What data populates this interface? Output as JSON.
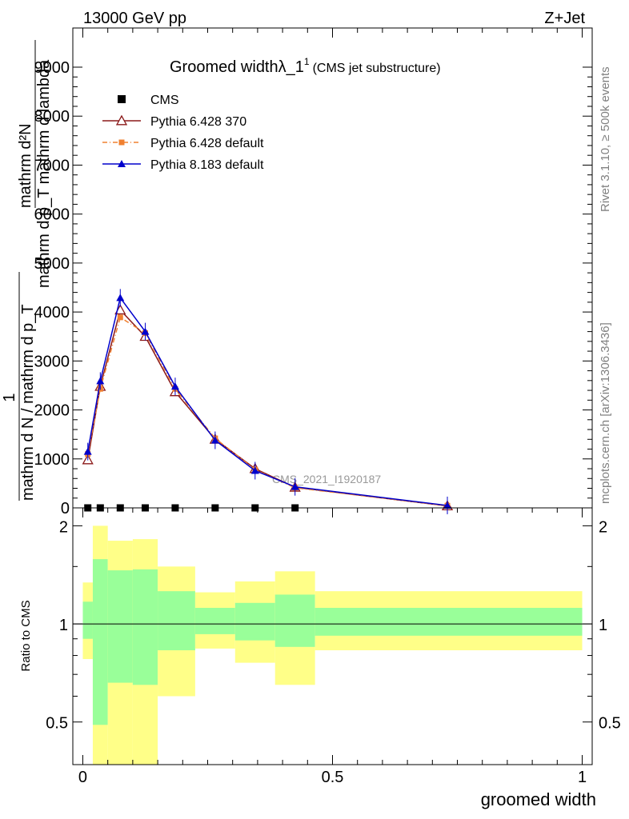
{
  "header": {
    "left": "13000 GeV pp",
    "right": "Z+Jet"
  },
  "side_texts": {
    "rivet": "Rivet 3.1.10, ≥ 500k events",
    "mcplots": "mcplots.cern.ch [arXiv:1306.3436]"
  },
  "colors": {
    "cms": "#000000",
    "py6_370": "#8b1a1a",
    "py6_default": "#f08030",
    "py8_default": "#0000cc",
    "band_outer": "#ffff88",
    "band_inner": "#99ff99"
  },
  "chart_data": [
    {
      "type": "line",
      "title_main": "Groomed width",
      "title_symbol": "λ_1",
      "title_sup": "1",
      "title_sub": "(CMS jet substructure)",
      "ylabel_numerator": "1",
      "ylabel_denominator": "mathrm d N / mathrm d p_T",
      "ylabel_top_numerator": "mathrm d²N",
      "ylabel_top_denominator": "mathrm d p_T mathrm d lambda",
      "watermark": "CMS_2021_I1920187",
      "xlim": [
        -0.02,
        1.02
      ],
      "ylim": [
        0,
        9800
      ],
      "yticks": [
        0,
        1000,
        2000,
        3000,
        4000,
        5000,
        6000,
        7000,
        8000,
        9000
      ],
      "ytick_labels": [
        "0",
        "1000",
        "2000",
        "3000",
        "4000",
        "5000",
        "6000",
        "7000",
        "8000",
        "9000"
      ],
      "series": [
        {
          "name": "CMS",
          "color_key": "cms",
          "marker": "square",
          "x": [
            0.01,
            0.035,
            0.075,
            0.125,
            0.185,
            0.265,
            0.345,
            0.425
          ],
          "y": [
            0,
            0,
            0,
            0,
            0,
            0,
            0,
            0
          ]
        },
        {
          "name": "Pythia 6.428 370",
          "color_key": "py6_370",
          "marker": "open-triangle",
          "x": [
            0.01,
            0.035,
            0.075,
            0.125,
            0.185,
            0.265,
            0.345,
            0.425,
            0.73
          ],
          "y": [
            980,
            2480,
            4040,
            3500,
            2370,
            1400,
            800,
            420,
            40
          ]
        },
        {
          "name": "Pythia 6.428 default",
          "color_key": "py6_default",
          "marker": "filled-square",
          "x": [
            0.01,
            0.035,
            0.075,
            0.125,
            0.185,
            0.265,
            0.345,
            0.425,
            0.73
          ],
          "y": [
            1100,
            2430,
            3890,
            3570,
            2430,
            1420,
            780,
            410,
            45
          ]
        },
        {
          "name": "Pythia 8.183 default",
          "color_key": "py8_default",
          "marker": "filled-triangle",
          "x": [
            0.01,
            0.035,
            0.075,
            0.125,
            0.185,
            0.265,
            0.345,
            0.425,
            0.73
          ],
          "y": [
            1150,
            2590,
            4290,
            3600,
            2480,
            1380,
            760,
            430,
            50
          ]
        }
      ]
    },
    {
      "type": "area",
      "ylabel": "Ratio to CMS",
      "xlabel": "groomed width",
      "xlim": [
        -0.02,
        1.02
      ],
      "ylim": [
        0.37,
        2.27
      ],
      "yticks": [
        0.5,
        1,
        2
      ],
      "ytick_labels": [
        "0.5",
        "1",
        "2"
      ],
      "xticks": [
        0,
        0.5,
        1
      ],
      "xtick_labels": [
        "0",
        "0.5",
        "1"
      ],
      "reference_line": 1,
      "bins": [
        {
          "lo": 0.0,
          "hi": 0.02,
          "inner": [
            0.9,
            1.17
          ],
          "outer": [
            0.78,
            1.34
          ]
        },
        {
          "lo": 0.02,
          "hi": 0.05,
          "inner": [
            0.49,
            1.58
          ],
          "outer": [
            0.37,
            2.0
          ]
        },
        {
          "lo": 0.05,
          "hi": 0.1,
          "inner": [
            0.66,
            1.46
          ],
          "outer": [
            0.37,
            1.8
          ]
        },
        {
          "lo": 0.1,
          "hi": 0.15,
          "inner": [
            0.65,
            1.47
          ],
          "outer": [
            0.37,
            1.82
          ]
        },
        {
          "lo": 0.15,
          "hi": 0.225,
          "inner": [
            0.83,
            1.26
          ],
          "outer": [
            0.6,
            1.5
          ]
        },
        {
          "lo": 0.225,
          "hi": 0.305,
          "inner": [
            0.93,
            1.12
          ],
          "outer": [
            0.84,
            1.25
          ]
        },
        {
          "lo": 0.305,
          "hi": 0.385,
          "inner": [
            0.89,
            1.16
          ],
          "outer": [
            0.76,
            1.35
          ]
        },
        {
          "lo": 0.385,
          "hi": 0.465,
          "inner": [
            0.85,
            1.23
          ],
          "outer": [
            0.65,
            1.45
          ]
        },
        {
          "lo": 0.465,
          "hi": 1.0,
          "inner": [
            0.92,
            1.12
          ],
          "outer": [
            0.83,
            1.26
          ]
        }
      ]
    }
  ]
}
